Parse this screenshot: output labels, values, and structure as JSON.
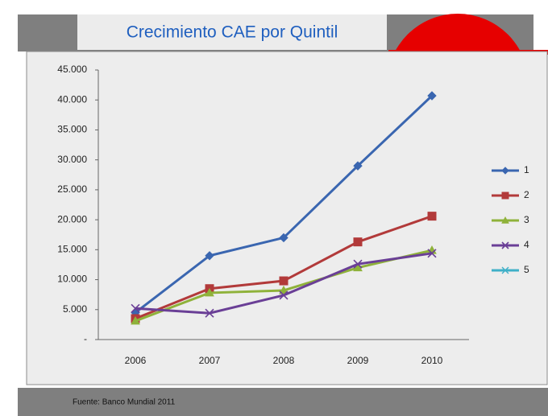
{
  "slide": {
    "title": "Crecimiento CAE por Quintil",
    "source": "Fuente: Banco Mundial 2011"
  },
  "chart_data": {
    "type": "line",
    "categories": [
      "2006",
      "2007",
      "2008",
      "2009",
      "2010"
    ],
    "series": [
      {
        "name": "1",
        "color": "#3a66b0",
        "marker": "diamond",
        "values": [
          4500,
          14000,
          17000,
          29000,
          40700
        ]
      },
      {
        "name": "2",
        "color": "#b23a3a",
        "marker": "square",
        "values": [
          3500,
          8500,
          9800,
          16300,
          20600
        ]
      },
      {
        "name": "3",
        "color": "#8fb23a",
        "marker": "triangle",
        "values": [
          3100,
          7800,
          8200,
          12000,
          14900
        ]
      },
      {
        "name": "4",
        "color": "#6a3f96",
        "marker": "x",
        "values": [
          5200,
          4400,
          7400,
          12600,
          14400
        ]
      },
      {
        "name": "5",
        "color": "#3fb0c8",
        "marker": "star",
        "values": [
          null,
          null,
          null,
          null,
          null
        ]
      }
    ],
    "ylim": [
      0,
      45000
    ],
    "yticks": [
      {
        "value": 0,
        "label": "-"
      },
      {
        "value": 5000,
        "label": "5.000"
      },
      {
        "value": 10000,
        "label": "10.000"
      },
      {
        "value": 15000,
        "label": "15.000"
      },
      {
        "value": 20000,
        "label": "20.000"
      },
      {
        "value": 25000,
        "label": "25.000"
      },
      {
        "value": 30000,
        "label": "30.000"
      },
      {
        "value": 35000,
        "label": "35.000"
      },
      {
        "value": 40000,
        "label": "40.000"
      },
      {
        "value": 45000,
        "label": "45.000"
      }
    ],
    "legend": "right"
  }
}
